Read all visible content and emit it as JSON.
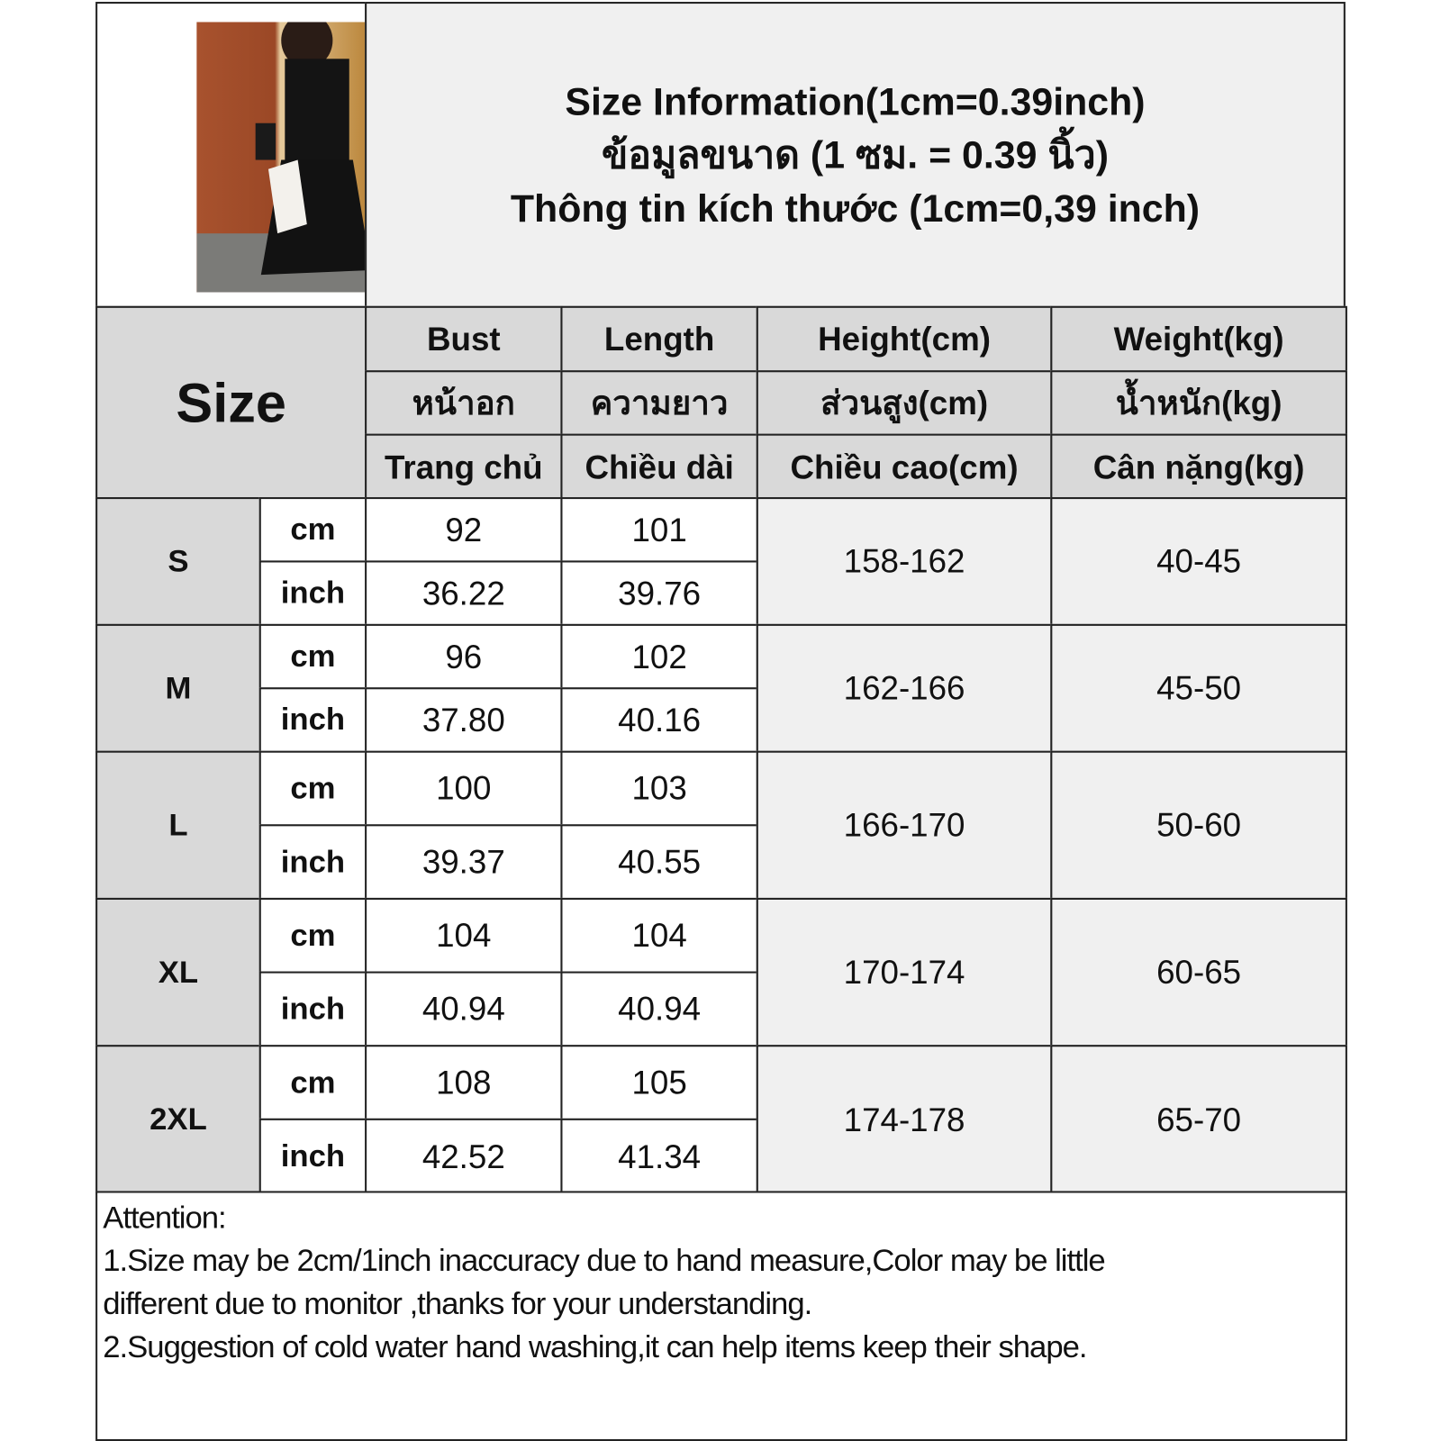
{
  "title": {
    "line1": "Size Information(1cm=0.39inch)",
    "line2": "ข้อมูลขนาด (1 ซม. = 0.39 นิ้ว)",
    "line3": "Thông tin kích thước (1cm=0,39 inch)"
  },
  "header": {
    "size": "Size",
    "columns": [
      {
        "en": "Bust",
        "th": "หน้าอก",
        "vi": "Trang chủ"
      },
      {
        "en": "Length",
        "th": "ความยาว",
        "vi": "Chiều dài"
      },
      {
        "en": "Height(cm)",
        "th": "ส่วนสูง(cm)",
        "vi": "Chiều cao(cm)"
      },
      {
        "en": "Weight(kg)",
        "th": "น้ำหนัก(kg)",
        "vi": "Cân nặng(kg)"
      }
    ]
  },
  "units": {
    "cm": "cm",
    "inch": "inch"
  },
  "rows": [
    {
      "size": "S",
      "bust_cm": "92",
      "bust_in": "36.22",
      "length_cm": "101",
      "length_in": "39.76",
      "height": "158-162",
      "weight": "40-45"
    },
    {
      "size": "M",
      "bust_cm": "96",
      "bust_in": "37.80",
      "length_cm": "102",
      "length_in": "40.16",
      "height": "162-166",
      "weight": "45-50"
    },
    {
      "size": "L",
      "bust_cm": "100",
      "bust_in": "39.37",
      "length_cm": "103",
      "length_in": "40.55",
      "height": "166-170",
      "weight": "50-60"
    },
    {
      "size": "XL",
      "bust_cm": "104",
      "bust_in": "40.94",
      "length_cm": "104",
      "length_in": "40.94",
      "height": "170-174",
      "weight": "60-65"
    },
    {
      "size": "2XL",
      "bust_cm": "108",
      "bust_in": "42.52",
      "length_cm": "105",
      "length_in": "41.34",
      "height": "174-178",
      "weight": "65-70"
    }
  ],
  "notes": {
    "heading": "Attention:",
    "line1": "1.Size may be 2cm/1inch inaccuracy due to hand measure,Color may be little",
    "line1b": "different due to monitor ,thanks for your understanding.",
    "line2": "2.Suggestion of cold water hand washing,it can help items keep their shape."
  }
}
